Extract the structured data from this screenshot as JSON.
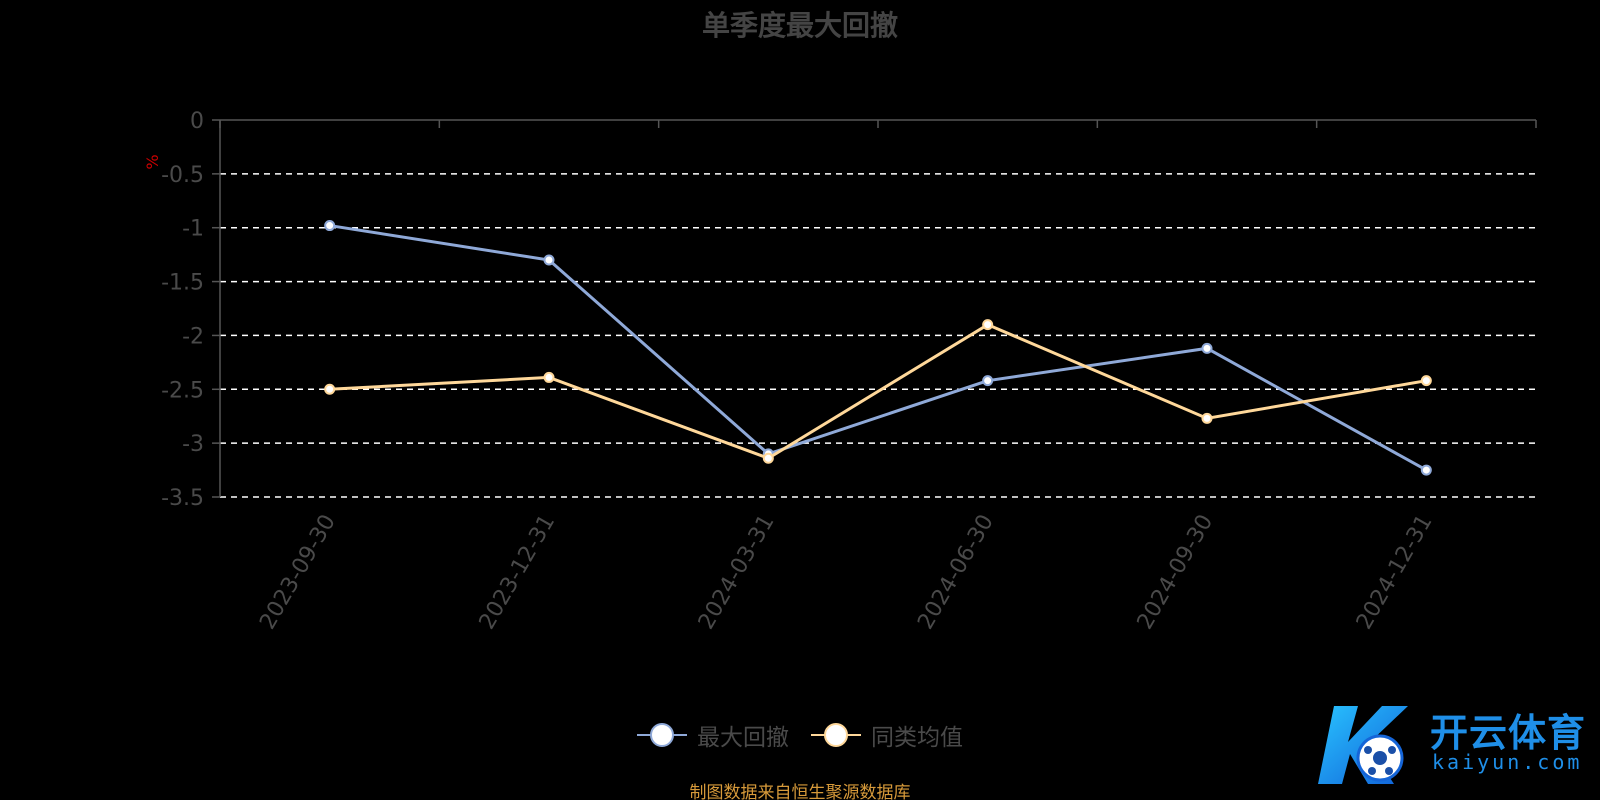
{
  "chart_data": {
    "type": "line",
    "title": "单季度最大回撤",
    "ylabel": "%",
    "categories": [
      "2023-09-30",
      "2023-12-31",
      "2024-03-31",
      "2024-06-30",
      "2024-09-30",
      "2024-12-31"
    ],
    "series": [
      {
        "name": "最大回撤",
        "values": [
          -0.98,
          -1.3,
          -3.1,
          -2.42,
          -2.12,
          -3.25
        ],
        "color": "#8fa9d8"
      },
      {
        "name": "同类均值",
        "values": [
          -2.5,
          -2.39,
          -3.14,
          -1.9,
          -2.77,
          -2.42
        ],
        "color": "#ffd89a"
      }
    ],
    "ylim": [
      -3.5,
      0
    ],
    "yticks": [
      0,
      -0.5,
      -1,
      -1.5,
      -2,
      -2.5,
      -3,
      -3.5
    ],
    "ytick_labels": [
      "0",
      "-0.5",
      "-1",
      "-1.5",
      "-2",
      "-2.5",
      "-3",
      "-3.5"
    ],
    "grid": true,
    "legend_position": "bottom"
  },
  "source_note": "制图数据来自恒生聚源数据库",
  "watermark": {
    "text": "开云体育",
    "sub": "kaiyun.com"
  }
}
